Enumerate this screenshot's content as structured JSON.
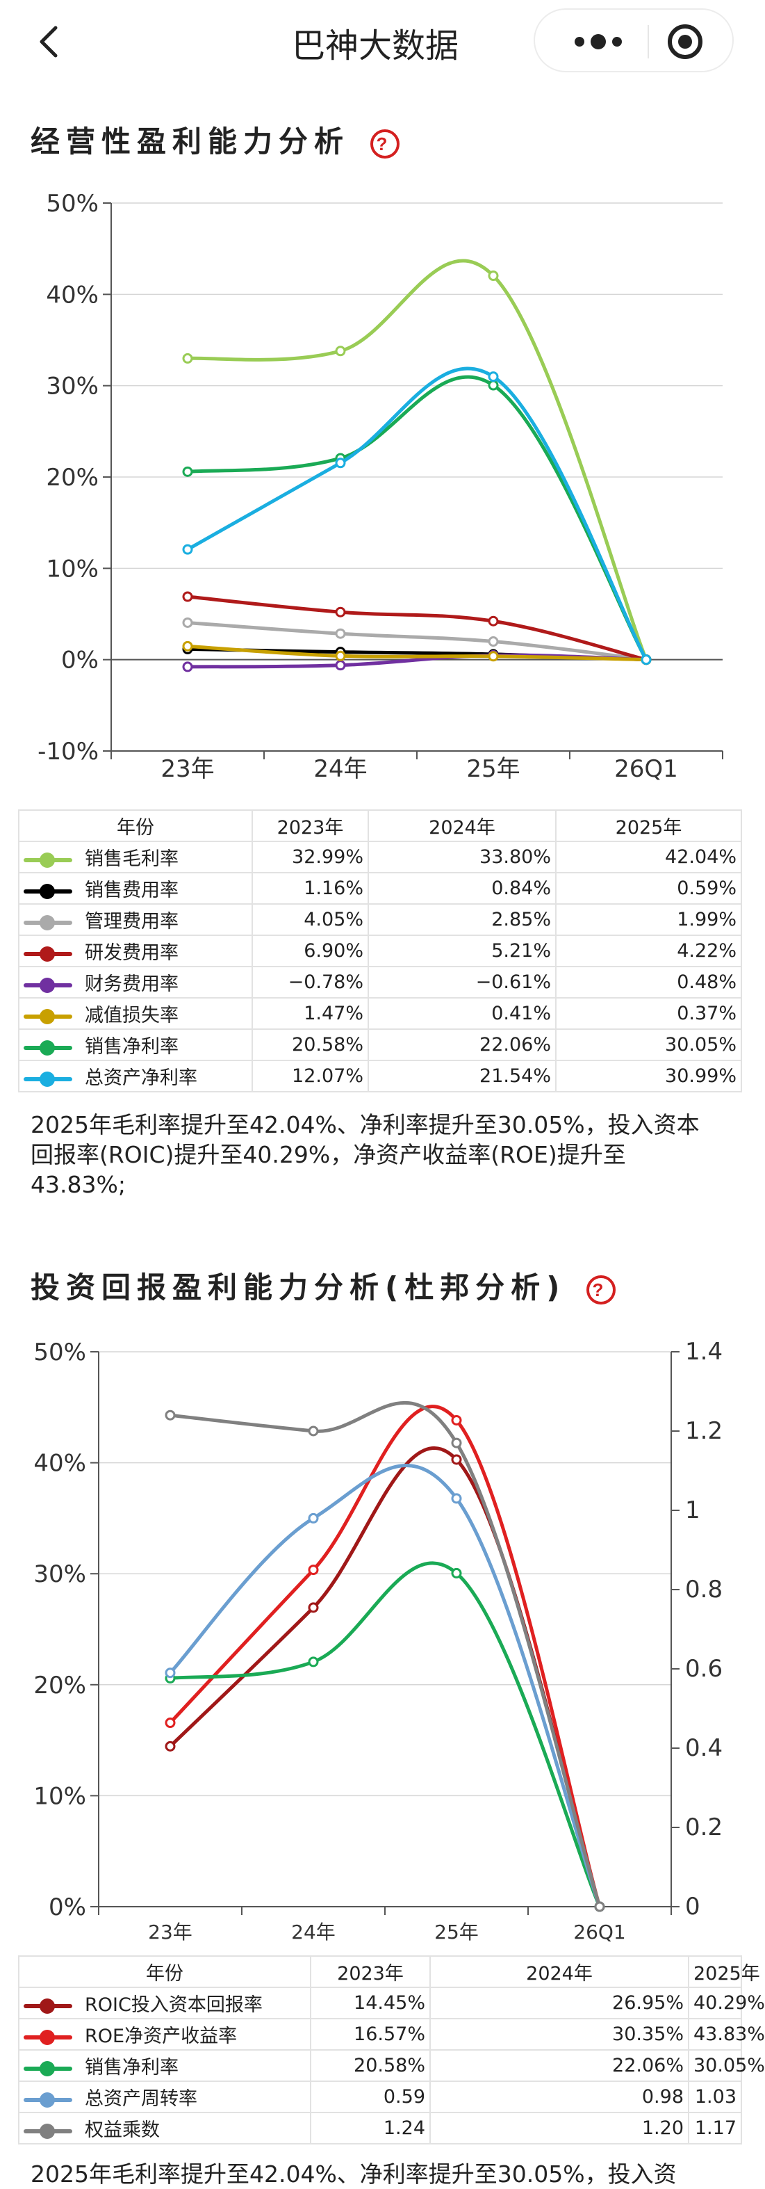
{
  "app": {
    "title": "巴神大数据"
  },
  "section1": {
    "title": "经营性盈利能力分析",
    "table": {
      "header": [
        "年份",
        "2023年",
        "2024年",
        "2025年"
      ],
      "rows": [
        {
          "label": "销售毛利率",
          "color": "#99cc55",
          "values": [
            "32.99%",
            "33.80%",
            "42.04%"
          ]
        },
        {
          "label": "销售费用率",
          "color": "#000000",
          "values": [
            "1.16%",
            "0.84%",
            "0.59%"
          ]
        },
        {
          "label": "管理费用率",
          "color": "#aaaaaa",
          "values": [
            "4.05%",
            "2.85%",
            "1.99%"
          ]
        },
        {
          "label": "研发费用率",
          "color": "#b01a1a",
          "values": [
            "6.90%",
            "5.21%",
            "4.22%"
          ]
        },
        {
          "label": "财务费用率",
          "color": "#7030a0",
          "values": [
            "−0.78%",
            "−0.61%",
            "0.48%"
          ]
        },
        {
          "label": "减值损失率",
          "color": "#c8a000",
          "values": [
            "1.47%",
            "0.41%",
            "0.37%"
          ]
        },
        {
          "label": "销售净利率",
          "color": "#1aaa55",
          "values": [
            "20.58%",
            "22.06%",
            "30.05%"
          ]
        },
        {
          "label": "总资产净利率",
          "color": "#1aaee0",
          "values": [
            "12.07%",
            "21.54%",
            "30.99%"
          ]
        }
      ]
    },
    "description": "2025年毛利率提升至42.04%、净利率提升至30.05%，投入资本回报率(ROIC)提升至40.29%，净资产收益率(ROE)提升至43.83%;"
  },
  "section2": {
    "title": "投资回报盈利能力分析(杜邦分析)",
    "table": {
      "header": [
        "年份",
        "2023年",
        "2024年",
        "2025年"
      ],
      "rows": [
        {
          "label": "ROIC投入资本回报率",
          "color": "#a01818",
          "values": [
            "14.45%",
            "26.95%",
            "40.29%"
          ]
        },
        {
          "label": "ROE净资产收益率",
          "color": "#e02020",
          "values": [
            "16.57%",
            "30.35%",
            "43.83%"
          ]
        },
        {
          "label": "销售净利率",
          "color": "#1aaa55",
          "values": [
            "20.58%",
            "22.06%",
            "30.05%"
          ]
        },
        {
          "label": "总资产周转率",
          "color": "#6a9ed0",
          "values": [
            "0.59",
            "0.98",
            "1.03"
          ]
        },
        {
          "label": "权益乘数",
          "color": "#808080",
          "values": [
            "1.24",
            "1.20",
            "1.17"
          ]
        }
      ]
    },
    "next_text": "2025年毛利率提升至42.04%、净利率提升至30.05%，投入资"
  },
  "chart_data": [
    {
      "type": "line",
      "categories": [
        "23年",
        "24年",
        "25年",
        "26Q1"
      ],
      "yticks": [
        "50%",
        "40%",
        "30%",
        "20%",
        "10%",
        "0%",
        "-10%"
      ],
      "ylim": [
        -10,
        50
      ],
      "grid": true,
      "series": [
        {
          "name": "销售毛利率",
          "color": "#99cc55",
          "values": [
            32.99,
            33.8,
            42.04,
            0
          ]
        },
        {
          "name": "销售费用率",
          "color": "#000000",
          "values": [
            1.16,
            0.84,
            0.59,
            0
          ]
        },
        {
          "name": "管理费用率",
          "color": "#aaaaaa",
          "values": [
            4.05,
            2.85,
            1.99,
            0
          ]
        },
        {
          "name": "研发费用率",
          "color": "#b01a1a",
          "values": [
            6.9,
            5.21,
            4.22,
            0
          ]
        },
        {
          "name": "财务费用率",
          "color": "#7030a0",
          "values": [
            -0.78,
            -0.61,
            0.48,
            0
          ]
        },
        {
          "name": "减值损失率",
          "color": "#c8a000",
          "values": [
            1.47,
            0.41,
            0.37,
            0
          ]
        },
        {
          "name": "销售净利率",
          "color": "#1aaa55",
          "values": [
            20.58,
            22.06,
            30.05,
            0
          ]
        },
        {
          "name": "总资产净利率",
          "color": "#1aaee0",
          "values": [
            12.07,
            21.54,
            30.99,
            0
          ]
        }
      ]
    },
    {
      "type": "line",
      "categories": [
        "23年",
        "24年",
        "25年",
        "26Q1"
      ],
      "yticks": [
        "50%",
        "40%",
        "30%",
        "20%",
        "10%",
        "0%"
      ],
      "ylim": [
        0,
        50
      ],
      "y2ticks": [
        "1.4",
        "1.2",
        "1",
        "0.8",
        "0.6",
        "0.4",
        "0.2",
        "0"
      ],
      "y2lim": [
        0,
        1.4
      ],
      "grid": true,
      "series": [
        {
          "name": "ROIC投入资本回报率",
          "color": "#a01818",
          "axis": "left",
          "values": [
            14.45,
            26.95,
            40.29,
            0
          ]
        },
        {
          "name": "ROE净资产收益率",
          "color": "#e02020",
          "axis": "left",
          "values": [
            16.57,
            30.35,
            43.83,
            0
          ]
        },
        {
          "name": "销售净利率",
          "color": "#1aaa55",
          "axis": "left",
          "values": [
            20.58,
            22.06,
            30.05,
            0
          ]
        },
        {
          "name": "总资产周转率",
          "color": "#6a9ed0",
          "axis": "right",
          "values": [
            0.59,
            0.98,
            1.03,
            0
          ]
        },
        {
          "name": "权益乘数",
          "color": "#808080",
          "axis": "right",
          "values": [
            1.24,
            1.2,
            1.17,
            0
          ]
        }
      ]
    }
  ]
}
